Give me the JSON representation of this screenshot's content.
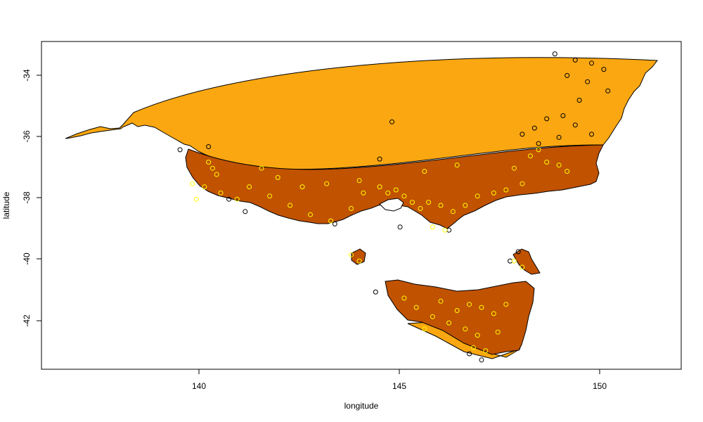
{
  "plot": {
    "xlabel": "longitude",
    "ylabel": "latitude",
    "x_ticks": [
      "140",
      "145",
      "150"
    ],
    "y_ticks": [
      "-34",
      "-36",
      "-38",
      "-40",
      "-42"
    ]
  },
  "colors": {
    "outer_region_fill": "#FBA711",
    "inner_region_fill": "#C05200",
    "outline": "#000000",
    "point_outside": "#000000",
    "point_inside": "#FFFF00"
  },
  "map_data": {
    "type": "scatter-map",
    "xlim": [
      136.4,
      152.1
    ],
    "ylim": [
      -43.5,
      -32.9
    ],
    "outer_region_color": "orange",
    "inner_region_color": "dark orange / rust",
    "points_outside_inner_region": [
      [
        149.0,
        -33.3
      ],
      [
        149.5,
        -33.5
      ],
      [
        149.9,
        -33.6
      ],
      [
        150.2,
        -33.8
      ],
      [
        149.3,
        -34.0
      ],
      [
        149.8,
        -34.2
      ],
      [
        150.3,
        -34.5
      ],
      [
        149.6,
        -34.8
      ],
      [
        149.2,
        -35.3
      ],
      [
        148.8,
        -35.4
      ],
      [
        149.5,
        -35.6
      ],
      [
        149.9,
        -35.9
      ],
      [
        148.5,
        -35.7
      ],
      [
        148.2,
        -35.9
      ],
      [
        149.1,
        -36.0
      ],
      [
        148.6,
        -36.2
      ],
      [
        145.0,
        -35.5
      ],
      [
        140.5,
        -36.3
      ],
      [
        144.7,
        -36.7
      ],
      [
        145.2,
        -38.9
      ],
      [
        141.4,
        -38.4
      ],
      [
        143.6,
        -38.8
      ],
      [
        146.4,
        -39.0
      ],
      [
        147.2,
        -43.2
      ],
      [
        146.9,
        -43.0
      ],
      [
        147.9,
        -40.0
      ],
      [
        148.1,
        -39.7
      ],
      [
        144.6,
        -41.0
      ],
      [
        139.8,
        -36.4
      ],
      [
        141.0,
        -38.0
      ]
    ],
    "points_inside_inner_region": [
      [
        140.1,
        -37.5
      ],
      [
        140.4,
        -37.6
      ],
      [
        140.8,
        -37.8
      ],
      [
        141.2,
        -38.0
      ],
      [
        140.7,
        -37.2
      ],
      [
        140.6,
        -37.0
      ],
      [
        141.5,
        -37.6
      ],
      [
        142.0,
        -37.9
      ],
      [
        142.5,
        -38.2
      ],
      [
        143.0,
        -38.5
      ],
      [
        143.5,
        -38.7
      ],
      [
        144.0,
        -38.3
      ],
      [
        144.3,
        -37.8
      ],
      [
        144.7,
        -37.6
      ],
      [
        144.9,
        -37.8
      ],
      [
        145.1,
        -37.7
      ],
      [
        145.3,
        -37.9
      ],
      [
        145.5,
        -38.1
      ],
      [
        145.7,
        -38.3
      ],
      [
        145.9,
        -38.1
      ],
      [
        146.2,
        -38.2
      ],
      [
        146.5,
        -38.4
      ],
      [
        146.8,
        -38.2
      ],
      [
        147.1,
        -37.9
      ],
      [
        147.5,
        -37.8
      ],
      [
        147.8,
        -37.7
      ],
      [
        148.2,
        -37.5
      ],
      [
        148.4,
        -36.6
      ],
      [
        148.6,
        -36.4
      ],
      [
        148.8,
        -36.8
      ],
      [
        149.1,
        -36.9
      ],
      [
        149.3,
        -37.1
      ],
      [
        148.0,
        -37.0
      ],
      [
        146.6,
        -36.9
      ],
      [
        145.8,
        -37.1
      ],
      [
        144.2,
        -37.4
      ],
      [
        143.4,
        -37.5
      ],
      [
        142.8,
        -37.6
      ],
      [
        142.2,
        -37.3
      ],
      [
        141.8,
        -37.0
      ],
      [
        140.2,
        -38.0
      ],
      [
        140.5,
        -36.8
      ],
      [
        146.0,
        -38.9
      ],
      [
        146.3,
        -39.0
      ],
      [
        144.2,
        -40.0
      ],
      [
        144.0,
        -39.8
      ],
      [
        148.0,
        -40.0
      ],
      [
        148.2,
        -40.2
      ],
      [
        145.6,
        -41.5
      ],
      [
        146.2,
        -41.3
      ],
      [
        146.6,
        -41.6
      ],
      [
        146.9,
        -41.4
      ],
      [
        147.2,
        -41.5
      ],
      [
        147.5,
        -41.7
      ],
      [
        147.8,
        -41.4
      ],
      [
        146.0,
        -41.8
      ],
      [
        146.4,
        -42.0
      ],
      [
        146.8,
        -42.2
      ],
      [
        147.1,
        -42.4
      ],
      [
        147.0,
        -42.8
      ],
      [
        147.3,
        -42.9
      ],
      [
        147.6,
        -42.3
      ],
      [
        145.3,
        -41.2
      ],
      [
        145.8,
        -42.2
      ]
    ]
  }
}
